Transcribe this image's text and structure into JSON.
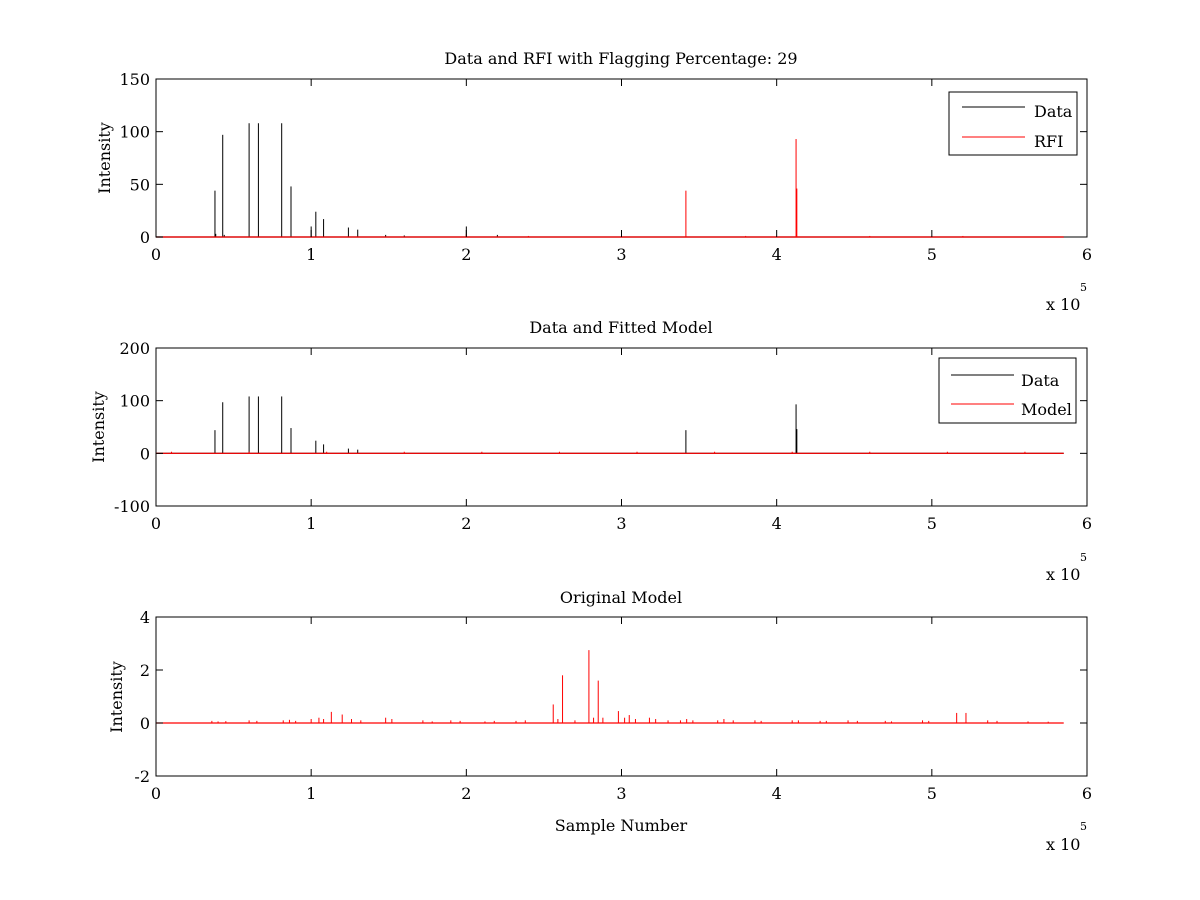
{
  "figure": {
    "background": "#ffffff",
    "colors": {
      "data": "#000000",
      "rfi": "#ff0000",
      "model": "#ff0000"
    }
  },
  "chart_data": [
    {
      "type": "line",
      "title": "Data and RFI with Flagging Percentage: 29",
      "xlabel": "",
      "ylabel": "Intensity",
      "xlim": [
        0,
        600000
      ],
      "ylim": [
        0,
        150
      ],
      "xticks": [
        0,
        100000,
        200000,
        300000,
        400000,
        500000,
        600000
      ],
      "xticklabels": [
        "0",
        "1",
        "2",
        "3",
        "4",
        "5",
        "6"
      ],
      "yticks": [
        0,
        50,
        100,
        150
      ],
      "yticklabels": [
        "0",
        "50",
        "100",
        "150"
      ],
      "x_multiplier": {
        "base": "x 10",
        "exponent": "5"
      },
      "grid": false,
      "legend": "top-right",
      "x_extent": [
        0,
        585000
      ],
      "series": [
        {
          "name": "Data",
          "color": "#000000",
          "spikes": [
            [
              38000,
              44
            ],
            [
              38500,
              3
            ],
            [
              43000,
              97
            ],
            [
              44000,
              2
            ],
            [
              60000,
              108
            ],
            [
              66000,
              108
            ],
            [
              81000,
              108
            ],
            [
              87000,
              48
            ],
            [
              100000,
              10
            ],
            [
              103000,
              24
            ],
            [
              108000,
              17
            ],
            [
              124000,
              9
            ],
            [
              130000,
              7
            ],
            [
              148000,
              2
            ],
            [
              160000,
              1.5
            ],
            [
              200000,
              10
            ],
            [
              220000,
              2
            ]
          ]
        },
        {
          "name": "RFI",
          "color": "#ff0000",
          "spikes": [
            [
              200000,
              3
            ],
            [
              341500,
              44
            ],
            [
              412500,
              93
            ],
            [
              413000,
              46
            ],
            [
              240000,
              1
            ],
            [
              300000,
              1
            ],
            [
              380000,
              1
            ],
            [
              460000,
              1
            ],
            [
              520000,
              1
            ]
          ]
        }
      ]
    },
    {
      "type": "line",
      "title": "Data and Fitted Model",
      "xlabel": "",
      "ylabel": "Intensity",
      "xlim": [
        0,
        600000
      ],
      "ylim": [
        -100,
        200
      ],
      "xticks": [
        0,
        100000,
        200000,
        300000,
        400000,
        500000,
        600000
      ],
      "xticklabels": [
        "0",
        "1",
        "2",
        "3",
        "4",
        "5",
        "6"
      ],
      "yticks": [
        -100,
        0,
        100,
        200
      ],
      "yticklabels": [
        "-100",
        "0",
        "100",
        "200"
      ],
      "x_multiplier": {
        "base": "x 10",
        "exponent": "5"
      },
      "grid": false,
      "legend": "top-right",
      "x_extent": [
        0,
        585000
      ],
      "series": [
        {
          "name": "Data",
          "color": "#000000",
          "spikes": [
            [
              38000,
              44
            ],
            [
              43000,
              97
            ],
            [
              60000,
              108
            ],
            [
              66000,
              108
            ],
            [
              81000,
              108
            ],
            [
              87000,
              48
            ],
            [
              103000,
              24
            ],
            [
              108000,
              17
            ],
            [
              124000,
              9
            ],
            [
              130000,
              7
            ],
            [
              341500,
              44
            ],
            [
              412500,
              93
            ],
            [
              413000,
              46
            ]
          ]
        },
        {
          "name": "Model",
          "color": "#ff0000",
          "spikes": [
            [
              10000,
              3
            ],
            [
              60000,
              3
            ],
            [
              110000,
              3
            ],
            [
              160000,
              3
            ],
            [
              210000,
              3
            ],
            [
              260000,
              3
            ],
            [
              310000,
              3
            ],
            [
              360000,
              3
            ],
            [
              410000,
              3
            ],
            [
              460000,
              3
            ],
            [
              510000,
              3
            ],
            [
              560000,
              3
            ]
          ]
        }
      ]
    },
    {
      "type": "line",
      "title": "Original Model",
      "xlabel": "Sample Number",
      "ylabel": "Intensity",
      "xlim": [
        0,
        600000
      ],
      "ylim": [
        -2,
        4
      ],
      "xticks": [
        0,
        100000,
        200000,
        300000,
        400000,
        500000,
        600000
      ],
      "xticklabels": [
        "0",
        "1",
        "2",
        "3",
        "4",
        "5",
        "6"
      ],
      "yticks": [
        -2,
        0,
        2,
        4
      ],
      "yticklabels": [
        "-2",
        "0",
        "2",
        "4"
      ],
      "x_multiplier": {
        "base": "x 10",
        "exponent": "5"
      },
      "grid": false,
      "legend": "none",
      "x_extent": [
        0,
        585000
      ],
      "series": [
        {
          "name": "",
          "color": "#ff0000",
          "spikes": [
            [
              36000,
              0.08
            ],
            [
              40000,
              0.06
            ],
            [
              45000,
              0.07
            ],
            [
              60000,
              0.1
            ],
            [
              65000,
              0.08
            ],
            [
              82000,
              0.1
            ],
            [
              86000,
              0.12
            ],
            [
              90000,
              0.08
            ],
            [
              100000,
              0.15
            ],
            [
              105000,
              0.2
            ],
            [
              108000,
              0.15
            ],
            [
              113000,
              0.42
            ],
            [
              120000,
              0.32
            ],
            [
              126000,
              0.15
            ],
            [
              132000,
              0.1
            ],
            [
              148000,
              0.2
            ],
            [
              152000,
              0.15
            ],
            [
              172000,
              0.1
            ],
            [
              178000,
              0.06
            ],
            [
              190000,
              0.1
            ],
            [
              196000,
              0.08
            ],
            [
              212000,
              0.06
            ],
            [
              218000,
              0.08
            ],
            [
              232000,
              0.08
            ],
            [
              238000,
              0.1
            ],
            [
              256000,
              0.7
            ],
            [
              259000,
              0.15
            ],
            [
              262000,
              1.8
            ],
            [
              270000,
              0.1
            ],
            [
              279000,
              2.75
            ],
            [
              282000,
              0.2
            ],
            [
              285000,
              1.6
            ],
            [
              288000,
              0.2
            ],
            [
              298000,
              0.45
            ],
            [
              302000,
              0.2
            ],
            [
              305000,
              0.3
            ],
            [
              309000,
              0.15
            ],
            [
              318000,
              0.2
            ],
            [
              322000,
              0.15
            ],
            [
              330000,
              0.1
            ],
            [
              338000,
              0.1
            ],
            [
              342000,
              0.15
            ],
            [
              346000,
              0.1
            ],
            [
              362000,
              0.1
            ],
            [
              366000,
              0.15
            ],
            [
              372000,
              0.1
            ],
            [
              386000,
              0.1
            ],
            [
              390000,
              0.08
            ],
            [
              410000,
              0.1
            ],
            [
              414000,
              0.1
            ],
            [
              428000,
              0.08
            ],
            [
              432000,
              0.08
            ],
            [
              446000,
              0.1
            ],
            [
              452000,
              0.08
            ],
            [
              470000,
              0.08
            ],
            [
              474000,
              0.06
            ],
            [
              494000,
              0.1
            ],
            [
              498000,
              0.08
            ],
            [
              516000,
              0.38
            ],
            [
              522000,
              0.38
            ],
            [
              536000,
              0.1
            ],
            [
              542000,
              0.08
            ],
            [
              562000,
              0.06
            ],
            [
              575000,
              0.05
            ]
          ]
        }
      ]
    }
  ]
}
